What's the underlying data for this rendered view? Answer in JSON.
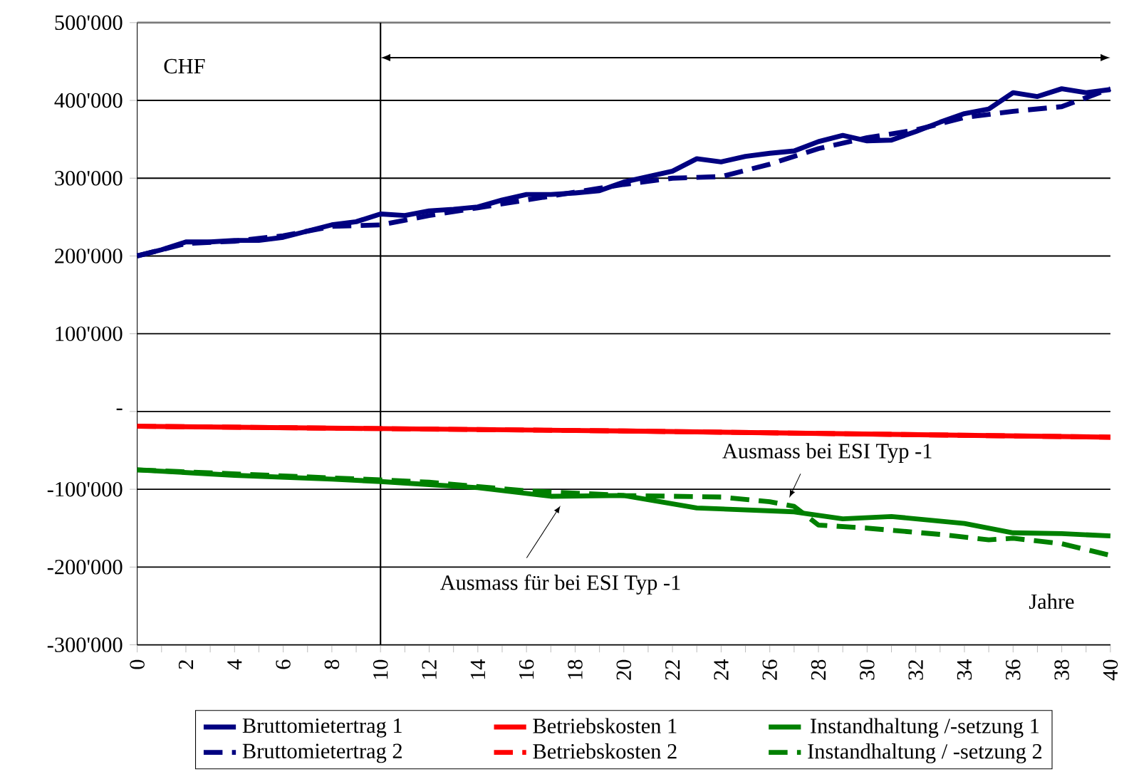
{
  "chart_data": {
    "type": "line",
    "x": [
      0,
      1,
      2,
      3,
      4,
      5,
      6,
      7,
      8,
      9,
      10,
      11,
      12,
      13,
      14,
      15,
      16,
      17,
      18,
      19,
      20,
      21,
      22,
      23,
      24,
      25,
      26,
      27,
      28,
      29,
      30,
      31,
      32,
      33,
      34,
      35,
      36,
      37,
      38,
      39,
      40
    ],
    "series": [
      {
        "name": "Bruttomietertrag 1",
        "color": "#000080",
        "line_style": "solid",
        "values": [
          200000,
          208000,
          218000,
          218000,
          220000,
          220000,
          224000,
          232000,
          240000,
          244000,
          254000,
          252000,
          258000,
          260000,
          263000,
          272000,
          279000,
          279000,
          281000,
          284000,
          295000,
          302000,
          309000,
          325000,
          321000,
          328000,
          332000,
          335000,
          347000,
          355000,
          348000,
          349000,
          360000,
          372000,
          383000,
          389000,
          410000,
          405000,
          415000,
          410000,
          414000
        ]
      },
      {
        "name": "Betriebskosten 1",
        "color": "#ff0000",
        "line_style": "solid",
        "x": [
          0,
          10,
          20,
          30,
          40
        ],
        "values": [
          -19000,
          -22000,
          -25000,
          -29000,
          -33000
        ]
      },
      {
        "name": "Instandhaltung /-setzung 1",
        "color": "#008000",
        "line_style": "solid",
        "x": [
          0,
          4,
          8,
          10,
          14,
          17,
          20,
          23,
          27,
          29,
          31,
          34,
          36,
          38,
          40
        ],
        "values": [
          -75000,
          -82000,
          -87000,
          -90000,
          -98000,
          -109000,
          -108000,
          -124000,
          -129000,
          -138000,
          -135000,
          -144000,
          -156000,
          -157000,
          -160000
        ]
      },
      {
        "name": "Bruttomietertrag 2",
        "color": "#000080",
        "line_style": "dashed",
        "x": [
          0,
          2,
          4,
          6,
          8,
          10,
          12,
          14,
          16,
          18,
          20,
          22,
          24,
          26,
          28,
          30,
          32,
          34,
          36,
          38,
          40
        ],
        "values": [
          200000,
          216000,
          219000,
          226000,
          238000,
          240000,
          252000,
          262000,
          272000,
          282000,
          292000,
          300000,
          302000,
          318000,
          338000,
          352000,
          362000,
          378000,
          386000,
          392000,
          415000
        ]
      },
      {
        "name": "Betriebskosten 2",
        "color": "#ff0000",
        "line_style": "dashed",
        "x": [
          0,
          10,
          20,
          30,
          40
        ],
        "values": [
          -19000,
          -22000,
          -25000,
          -29000,
          -33000
        ]
      },
      {
        "name": "Instandhaltung / -setzung 2",
        "color": "#008000",
        "line_style": "dashed",
        "x": [
          0,
          10,
          12,
          16,
          20,
          24,
          26,
          27,
          28,
          30,
          33,
          35,
          36,
          38,
          40
        ],
        "values": [
          -75000,
          -88000,
          -91000,
          -102000,
          -108000,
          -110000,
          -116000,
          -122000,
          -146000,
          -150000,
          -158000,
          -165000,
          -163000,
          -170000,
          -185000
        ]
      }
    ],
    "xlim": [
      0,
      40
    ],
    "xticks": [
      0,
      {
        "value": 1,
        "label": null
      },
      2,
      {
        "value": 3,
        "label": null
      },
      4,
      {
        "value": 5,
        "label": null
      },
      6,
      {
        "value": 7,
        "label": null
      },
      8,
      {
        "value": 9,
        "label": null
      },
      10,
      {
        "value": 11,
        "label": null
      },
      12,
      {
        "value": 13,
        "label": null
      },
      14,
      {
        "value": 15,
        "label": null
      },
      16,
      {
        "value": 17,
        "label": null
      },
      18,
      {
        "value": 19,
        "label": null
      },
      20,
      {
        "value": 21,
        "label": null
      },
      22,
      {
        "value": 23,
        "label": null
      },
      24,
      {
        "value": 25,
        "label": null
      },
      26,
      {
        "value": 27,
        "label": null
      },
      28,
      {
        "value": 29,
        "label": null
      },
      30,
      {
        "value": 31,
        "label": null
      },
      32,
      {
        "value": 33,
        "label": null
      },
      34,
      {
        "value": 35,
        "label": null
      },
      36,
      {
        "value": 37,
        "label": null
      },
      38,
      {
        "value": 39,
        "label": null
      },
      40
    ],
    "ylim": [
      -300000,
      500000
    ],
    "yticks": [
      {
        "value": -300000,
        "label": "-300'000"
      },
      {
        "value": -200000,
        "label": "-200'000"
      },
      {
        "value": -100000,
        "label": "-100'000"
      },
      {
        "value": 0,
        "label": "-"
      },
      {
        "value": 100000,
        "label": "100'000"
      },
      {
        "value": 200000,
        "label": "200'000"
      },
      {
        "value": 300000,
        "label": "300'000"
      },
      {
        "value": 400000,
        "label": "400'000"
      },
      {
        "value": 500000,
        "label": "500'000"
      }
    ],
    "grid": "y",
    "legend": "bottom",
    "marker": "none",
    "ref_lines": [
      {
        "axis": "x",
        "value": 10,
        "color": "#000000"
      }
    ],
    "annotations": [
      "CHF",
      {
        "text": "Ausmass bei ESI Typ -1",
        "x": 26.8,
        "y": -111000
      },
      {
        "text": "Ausmass für bei ESI Typ -1",
        "x": 17.4,
        "y": -121000
      },
      "Jahre"
    ]
  }
}
